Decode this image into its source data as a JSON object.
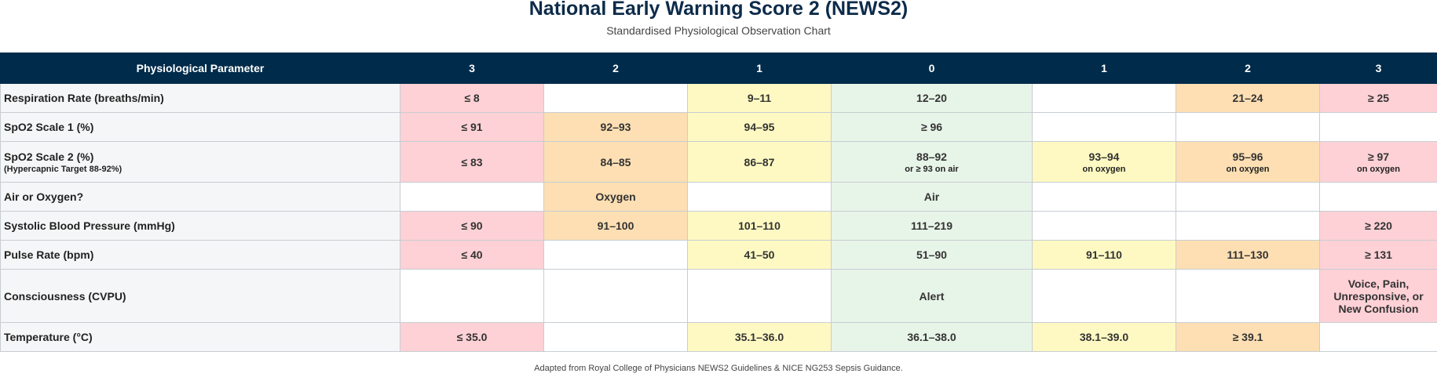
{
  "header": {
    "title": "National Early Warning Score 2 (NEWS2)",
    "subtitle": "Standardised Physiological Observation Chart"
  },
  "table": {
    "headers": [
      "Physiological Parameter",
      "3",
      "2",
      "1",
      "0",
      "1",
      "2",
      "3"
    ],
    "rows": [
      {
        "param": "Respiration Rate (breaths/min)",
        "param_sub": "",
        "cells": [
          {
            "text": "≤ 8",
            "sub": "",
            "color": "#fdd1d6"
          },
          {
            "text": "",
            "sub": "",
            "color": "#ffffff"
          },
          {
            "text": "9–11",
            "sub": "",
            "color": "#fef9c2"
          },
          {
            "text": "12–20",
            "sub": "",
            "color": "#e7f4e8"
          },
          {
            "text": "",
            "sub": "",
            "color": "#ffffff"
          },
          {
            "text": "21–24",
            "sub": "",
            "color": "#fddfb3"
          },
          {
            "text": "≥ 25",
            "sub": "",
            "color": "#fdd1d6"
          }
        ]
      },
      {
        "param": "SpO2 Scale 1 (%)",
        "param_sub": "",
        "cells": [
          {
            "text": "≤ 91",
            "sub": "",
            "color": "#fdd1d6"
          },
          {
            "text": "92–93",
            "sub": "",
            "color": "#fddfb3"
          },
          {
            "text": "94–95",
            "sub": "",
            "color": "#fef9c2"
          },
          {
            "text": "≥ 96",
            "sub": "",
            "color": "#e7f4e8"
          },
          {
            "text": "",
            "sub": "",
            "color": "#ffffff"
          },
          {
            "text": "",
            "sub": "",
            "color": "#ffffff"
          },
          {
            "text": "",
            "sub": "",
            "color": "#ffffff"
          }
        ]
      },
      {
        "param": "SpO2 Scale 2 (%)",
        "param_sub": "(Hypercapnic Target 88-92%)",
        "cells": [
          {
            "text": "≤ 83",
            "sub": "",
            "color": "#fdd1d6"
          },
          {
            "text": "84–85",
            "sub": "",
            "color": "#fddfb3"
          },
          {
            "text": "86–87",
            "sub": "",
            "color": "#fef9c2"
          },
          {
            "text": "88–92",
            "sub": "or ≥ 93 on air",
            "color": "#e7f4e8"
          },
          {
            "text": "93–94",
            "sub": "on oxygen",
            "color": "#fef9c2"
          },
          {
            "text": "95–96",
            "sub": "on oxygen",
            "color": "#fddfb3"
          },
          {
            "text": "≥ 97",
            "sub": "on oxygen",
            "color": "#fdd1d6"
          }
        ]
      },
      {
        "param": "Air or Oxygen?",
        "param_sub": "",
        "cells": [
          {
            "text": "",
            "sub": "",
            "color": "#ffffff"
          },
          {
            "text": "Oxygen",
            "sub": "",
            "color": "#fddfb3"
          },
          {
            "text": "",
            "sub": "",
            "color": "#ffffff"
          },
          {
            "text": "Air",
            "sub": "",
            "color": "#e7f4e8"
          },
          {
            "text": "",
            "sub": "",
            "color": "#ffffff"
          },
          {
            "text": "",
            "sub": "",
            "color": "#ffffff"
          },
          {
            "text": "",
            "sub": "",
            "color": "#ffffff"
          }
        ]
      },
      {
        "param": "Systolic Blood Pressure (mmHg)",
        "param_sub": "",
        "cells": [
          {
            "text": "≤ 90",
            "sub": "",
            "color": "#fdd1d6"
          },
          {
            "text": "91–100",
            "sub": "",
            "color": "#fddfb3"
          },
          {
            "text": "101–110",
            "sub": "",
            "color": "#fef9c2"
          },
          {
            "text": "111–219",
            "sub": "",
            "color": "#e7f4e8"
          },
          {
            "text": "",
            "sub": "",
            "color": "#ffffff"
          },
          {
            "text": "",
            "sub": "",
            "color": "#ffffff"
          },
          {
            "text": "≥ 220",
            "sub": "",
            "color": "#fdd1d6"
          }
        ]
      },
      {
        "param": "Pulse Rate (bpm)",
        "param_sub": "",
        "cells": [
          {
            "text": "≤ 40",
            "sub": "",
            "color": "#fdd1d6"
          },
          {
            "text": "",
            "sub": "",
            "color": "#ffffff"
          },
          {
            "text": "41–50",
            "sub": "",
            "color": "#fef9c2"
          },
          {
            "text": "51–90",
            "sub": "",
            "color": "#e7f4e8"
          },
          {
            "text": "91–110",
            "sub": "",
            "color": "#fef9c2"
          },
          {
            "text": "111–130",
            "sub": "",
            "color": "#fddfb3"
          },
          {
            "text": "≥ 131",
            "sub": "",
            "color": "#fdd1d6"
          }
        ]
      },
      {
        "param": "Consciousness (CVPU)",
        "param_sub": "",
        "cells": [
          {
            "text": "",
            "sub": "",
            "color": "#ffffff"
          },
          {
            "text": "",
            "sub": "",
            "color": "#ffffff"
          },
          {
            "text": "",
            "sub": "",
            "color": "#ffffff"
          },
          {
            "text": "Alert",
            "sub": "",
            "color": "#e7f4e8"
          },
          {
            "text": "",
            "sub": "",
            "color": "#ffffff"
          },
          {
            "text": "",
            "sub": "",
            "color": "#ffffff"
          },
          {
            "text": "Voice, Pain, Unresponsive, or New Confusion",
            "sub": "",
            "color": "#fdd1d6"
          }
        ]
      },
      {
        "param": "Temperature (°C)",
        "param_sub": "",
        "cells": [
          {
            "text": "≤ 35.0",
            "sub": "",
            "color": "#fdd1d6"
          },
          {
            "text": "",
            "sub": "",
            "color": "#ffffff"
          },
          {
            "text": "35.1–36.0",
            "sub": "",
            "color": "#fef9c2"
          },
          {
            "text": "36.1–38.0",
            "sub": "",
            "color": "#e7f4e8"
          },
          {
            "text": "38.1–39.0",
            "sub": "",
            "color": "#fef9c2"
          },
          {
            "text": "≥ 39.1",
            "sub": "",
            "color": "#fddfb3"
          },
          {
            "text": "",
            "sub": "",
            "color": "#ffffff"
          }
        ]
      }
    ]
  },
  "footer": {
    "text": "Adapted from Royal College of Physicians NEWS2 Guidelines & NICE NG253 Sepsis Guidance."
  }
}
